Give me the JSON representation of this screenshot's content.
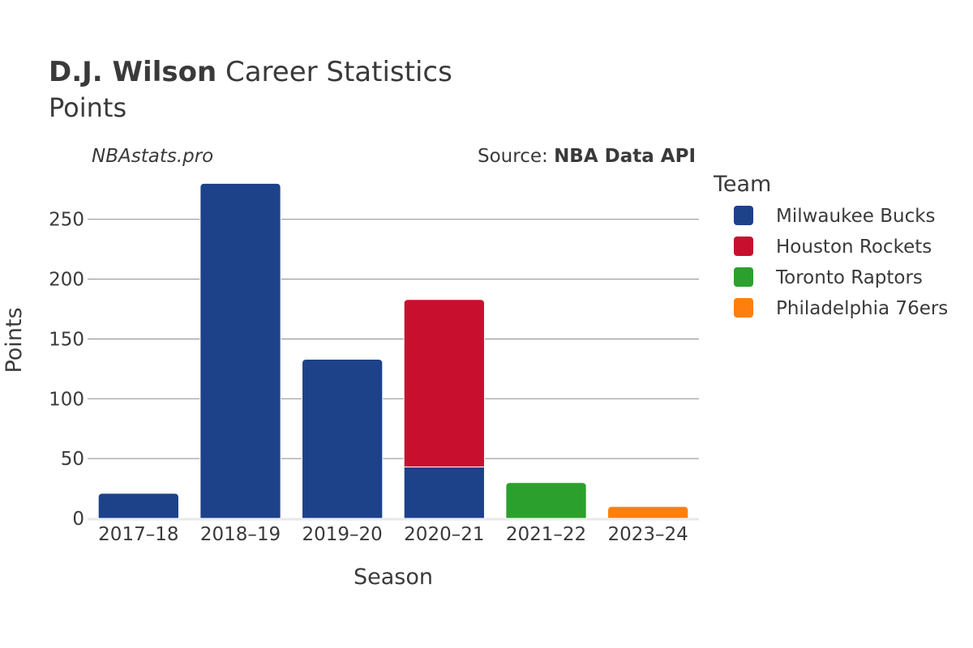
{
  "header": {
    "player_name": "D.J. Wilson",
    "title_rest": " Career Statistics",
    "subtitle": "Points",
    "watermark": "NBAstats.pro",
    "source_prefix": "Source: ",
    "source_name": "NBA Data API"
  },
  "colors": {
    "text": "#3a3a3a",
    "grid": "#8c8c8c",
    "baseline": "#e8e8e8"
  },
  "chart_data": {
    "type": "bar",
    "stacked": true,
    "xlabel": "Season",
    "ylabel": "Points",
    "ylim": [
      0,
      283
    ],
    "yticks": [
      0,
      50,
      100,
      150,
      200,
      250
    ],
    "categories": [
      "2017–18",
      "2018–19",
      "2019–20",
      "2020–21",
      "2021–22",
      "2023–24"
    ],
    "series": [
      {
        "name": "Milwaukee Bucks",
        "color": "#1d428a",
        "values": [
          21,
          280,
          133,
          43,
          0,
          0
        ]
      },
      {
        "name": "Houston Rockets",
        "color": "#c8102e",
        "values": [
          0,
          0,
          0,
          140,
          0,
          0
        ]
      },
      {
        "name": "Toronto Raptors",
        "color": "#2ca02c",
        "values": [
          0,
          0,
          0,
          0,
          30,
          0
        ]
      },
      {
        "name": "Philadelphia 76ers",
        "color": "#ff7f0e",
        "values": [
          0,
          0,
          0,
          0,
          0,
          10
        ]
      }
    ],
    "legend": {
      "title": "Team",
      "position": "right"
    },
    "grid": true
  }
}
